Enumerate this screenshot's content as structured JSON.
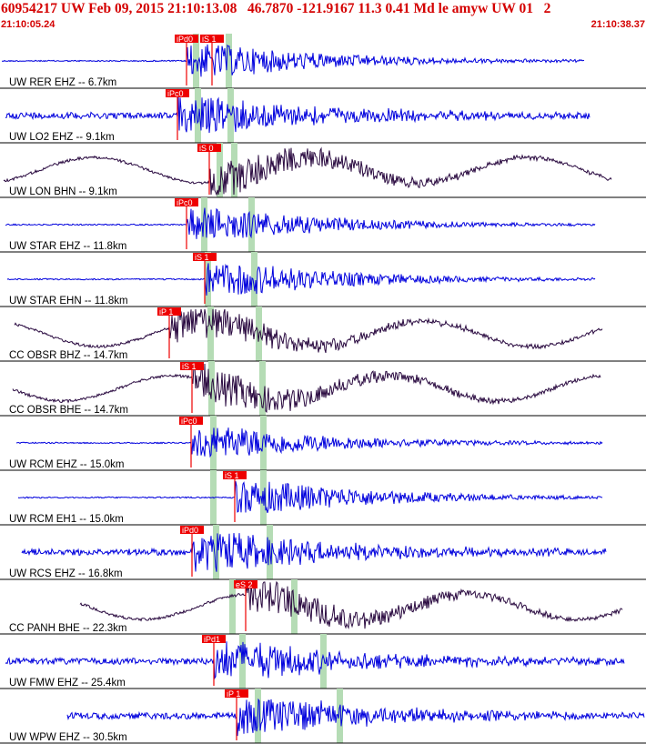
{
  "header": {
    "title": "60954217 UW Feb 09, 2015 21:10:13.08   46.7870 -121.9167 11.3 0.41 Md le amyw UW 01   2",
    "time_start": "21:10:05.24",
    "time_end": "21:10:38.37",
    "text_color": "#d40000"
  },
  "colors": {
    "blue_trace": "#0000dd",
    "dark_trace": "#2a0a40",
    "pick_box": "#ee0000",
    "green_band": "#b5dcb5",
    "separator": "#000000"
  },
  "traces": [
    {
      "label": "UW RER EHZ -- 6.7km",
      "color": "blue",
      "style": "quiet",
      "amp": 1.0,
      "picks": [
        {
          "text": "iPd0"
        },
        {
          "text": "iS 1"
        }
      ]
    },
    {
      "label": "UW LO2 EHZ -- 9.1km",
      "color": "blue",
      "style": "noisy",
      "amp": 1.0,
      "picks": [
        {
          "text": "iPc0"
        }
      ]
    },
    {
      "label": "UW LON BHN -- 9.1km",
      "color": "dark",
      "style": "wave",
      "amp": 1.0,
      "picks": [
        {
          "text": "iS 0"
        }
      ]
    },
    {
      "label": "UW STAR EHZ -- 11.8km",
      "color": "blue",
      "style": "quiet",
      "amp": 1.0,
      "picks": [
        {
          "text": "iPc0"
        }
      ]
    },
    {
      "label": "UW STAR EHN -- 11.8km",
      "color": "blue",
      "style": "quiet",
      "amp": 1.0,
      "picks": [
        {
          "text": "iS 1"
        }
      ]
    },
    {
      "label": "CC OBSR BHZ -- 14.7km",
      "color": "dark",
      "style": "wave",
      "amp": 1.0,
      "picks": [
        {
          "text": "iP 1"
        }
      ]
    },
    {
      "label": "CC OBSR BHE -- 14.7km",
      "color": "dark",
      "style": "wave",
      "amp": 1.0,
      "picks": [
        {
          "text": "iS 1"
        }
      ]
    },
    {
      "label": "UW RCM EHZ -- 15.0km",
      "color": "blue",
      "style": "quiet",
      "amp": 1.0,
      "picks": [
        {
          "text": "iPc0"
        }
      ]
    },
    {
      "label": "UW RCM EH1 -- 15.0km",
      "color": "blue",
      "style": "quiet",
      "amp": 1.0,
      "picks": [
        {
          "text": "iS 1"
        }
      ]
    },
    {
      "label": "UW RCS EHZ -- 16.8km",
      "color": "blue",
      "style": "noisy",
      "amp": 1.0,
      "picks": [
        {
          "text": "iPd0"
        }
      ]
    },
    {
      "label": "CC PANH BHE -- 22.3km",
      "color": "dark",
      "style": "wave",
      "amp": 1.0,
      "picks": [
        {
          "text": "eS 2"
        }
      ]
    },
    {
      "label": "UW FMW EHZ -- 25.4km",
      "color": "blue",
      "style": "noisy",
      "amp": 1.0,
      "picks": [
        {
          "text": "iPd1"
        }
      ]
    },
    {
      "label": "UW WPW EHZ -- 30.5km",
      "color": "blue",
      "style": "noisy",
      "amp": 1.0,
      "picks": [
        {
          "text": "iP 1"
        }
      ]
    }
  ]
}
